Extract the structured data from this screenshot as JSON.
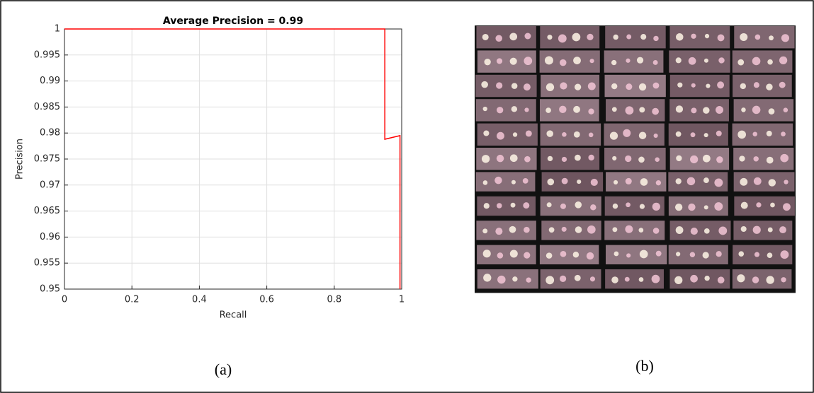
{
  "chart_data": {
    "type": "line",
    "title": "Average Precision = 0.99",
    "x_label": "Recall",
    "y_label": "Precision",
    "x": [
      0,
      0.95,
      0.95,
      0.995,
      0.995
    ],
    "series": [
      {
        "name": "Precision",
        "color": "#ff0000",
        "values": [
          1,
          1,
          0.9788,
          0.9795,
          0.95
        ]
      }
    ],
    "xlim": [
      0,
      1
    ],
    "xticks": [
      0,
      0.2,
      0.4,
      0.6,
      0.8,
      1
    ],
    "ylim": [
      0.95,
      1
    ],
    "yticks": [
      0.95,
      0.955,
      0.96,
      0.965,
      0.97,
      0.975,
      0.98,
      0.985,
      0.99,
      0.995,
      1
    ],
    "grid": true
  },
  "captions": [
    "(a)",
    "(b)"
  ]
}
